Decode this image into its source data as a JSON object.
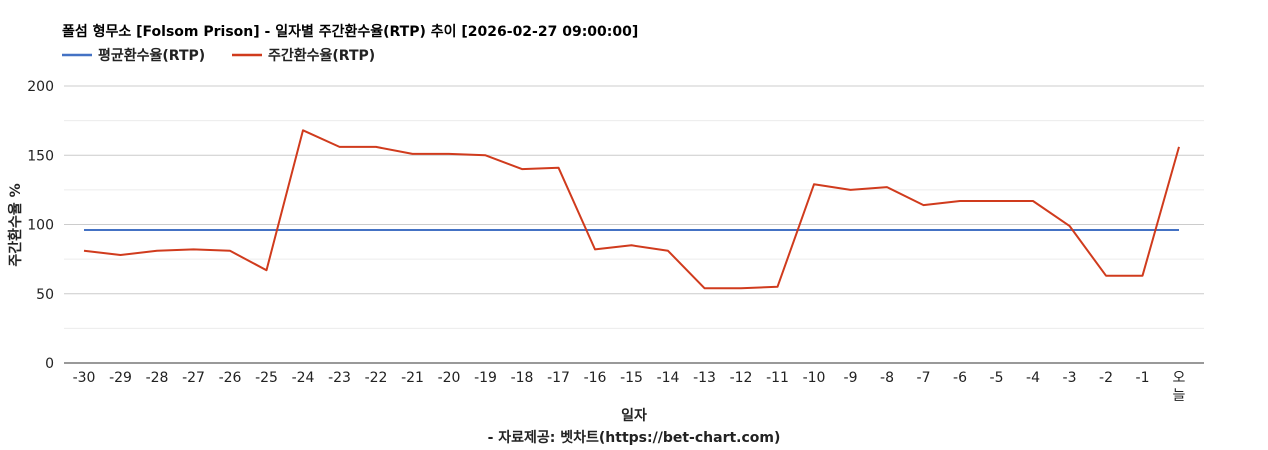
{
  "chart_data": {
    "type": "line",
    "title": "폴섬 형무소 [Folsom Prison] - 일자별 주간환수율(RTP) 추이 [2026-02-27 09:00:00]",
    "xlabel": "일자",
    "ylabel": "주간환수율 %",
    "source": "- 자료제공: 벳차트(https://bet-chart.com)",
    "ylim": [
      0,
      200
    ],
    "yticks": [
      0,
      50,
      100,
      150,
      200
    ],
    "grid": true,
    "legend_position": "top-left",
    "categories": [
      "-30",
      "-29",
      "-28",
      "-27",
      "-26",
      "-25",
      "-24",
      "-23",
      "-22",
      "-21",
      "-20",
      "-19",
      "-18",
      "-17",
      "-16",
      "-15",
      "-14",
      "-13",
      "-12",
      "-11",
      "-10",
      "-9",
      "-8",
      "-7",
      "-6",
      "-5",
      "-4",
      "-3",
      "-2",
      "-1",
      "오늘"
    ],
    "series": [
      {
        "name": "평균환수율(RTP)",
        "color": "#4472c4",
        "values": [
          96,
          96,
          96,
          96,
          96,
          96,
          96,
          96,
          96,
          96,
          96,
          96,
          96,
          96,
          96,
          96,
          96,
          96,
          96,
          96,
          96,
          96,
          96,
          96,
          96,
          96,
          96,
          96,
          96,
          96,
          96
        ]
      },
      {
        "name": "주간환수율(RTP)",
        "color": "#d03b1d",
        "values": [
          81,
          78,
          81,
          82,
          81,
          67,
          168,
          156,
          156,
          151,
          151,
          150,
          140,
          141,
          82,
          85,
          81,
          54,
          54,
          55,
          129,
          125,
          127,
          114,
          117,
          117,
          117,
          99,
          63,
          63,
          156
        ]
      }
    ]
  }
}
